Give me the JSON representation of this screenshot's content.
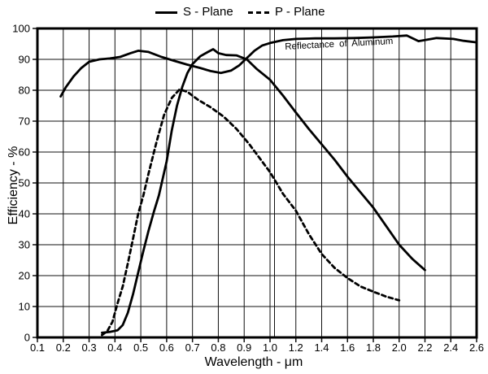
{
  "chart_data": {
    "type": "line",
    "title": "",
    "xlabel": "Wavelength - μm",
    "ylabel": "Efficiency - %",
    "ylim": [
      0,
      100
    ],
    "grid": true,
    "legend_position": "top",
    "x_scale_note": "piecewise linear: 0.1-1.0 μm at 0.1 per division, 1.0-2.6 μm at 0.2 per division",
    "scale_break_line": true,
    "x_ticks": [
      "0.1",
      "0.2",
      "0.3",
      "0.4",
      "0.5",
      "0.6",
      "0.7",
      "0.8",
      "0.9",
      "1.0",
      "1.2",
      "1.4",
      "1.6",
      "1.8",
      "2.0",
      "2.2",
      "2.4",
      "2.6"
    ],
    "y_ticks": [
      "0",
      "10",
      "20",
      "30",
      "40",
      "50",
      "60",
      "70",
      "80",
      "90",
      "100"
    ],
    "series": [
      {
        "id": "s-plane",
        "name": "S - Plane",
        "style": "solid",
        "color": "#000000",
        "points": [
          [
            0.35,
            1.5
          ],
          [
            0.38,
            1.8
          ],
          [
            0.41,
            2.3
          ],
          [
            0.43,
            4
          ],
          [
            0.45,
            8
          ],
          [
            0.47,
            14
          ],
          [
            0.49,
            21
          ],
          [
            0.51,
            28
          ],
          [
            0.53,
            34.5
          ],
          [
            0.55,
            40.5
          ],
          [
            0.57,
            46
          ],
          [
            0.6,
            57
          ],
          [
            0.62,
            67
          ],
          [
            0.64,
            75
          ],
          [
            0.66,
            81
          ],
          [
            0.68,
            85.5
          ],
          [
            0.7,
            88.5
          ],
          [
            0.73,
            91
          ],
          [
            0.76,
            92.4
          ],
          [
            0.78,
            93.3
          ],
          [
            0.8,
            92
          ],
          [
            0.83,
            91.4
          ],
          [
            0.87,
            91.3
          ],
          [
            0.91,
            90
          ],
          [
            0.95,
            86.8
          ],
          [
            1.0,
            83.4
          ],
          [
            1.1,
            78.3
          ],
          [
            1.2,
            72.8
          ],
          [
            1.3,
            67.5
          ],
          [
            1.4,
            62.5
          ],
          [
            1.5,
            57.5
          ],
          [
            1.6,
            52
          ],
          [
            1.7,
            47
          ],
          [
            1.8,
            42
          ],
          [
            1.9,
            36
          ],
          [
            2.0,
            30
          ],
          [
            2.1,
            25.5
          ],
          [
            2.2,
            21.8
          ]
        ]
      },
      {
        "id": "p-plane",
        "name": "P - Plane",
        "style": "dashed",
        "color": "#000000",
        "points": [
          [
            0.35,
            0.8
          ],
          [
            0.37,
            2
          ],
          [
            0.39,
            5
          ],
          [
            0.41,
            11
          ],
          [
            0.43,
            16.5
          ],
          [
            0.45,
            24
          ],
          [
            0.47,
            32
          ],
          [
            0.49,
            40
          ],
          [
            0.51,
            46
          ],
          [
            0.53,
            53
          ],
          [
            0.56,
            63
          ],
          [
            0.59,
            72
          ],
          [
            0.62,
            77.5
          ],
          [
            0.65,
            80.3
          ],
          [
            0.68,
            79.5
          ],
          [
            0.72,
            77
          ],
          [
            0.77,
            74.5
          ],
          [
            0.82,
            71.5
          ],
          [
            0.87,
            67.5
          ],
          [
            0.92,
            62.5
          ],
          [
            0.96,
            58
          ],
          [
            1.0,
            53.5
          ],
          [
            1.1,
            46.5
          ],
          [
            1.2,
            41
          ],
          [
            1.3,
            33.5
          ],
          [
            1.4,
            27
          ],
          [
            1.5,
            22.5
          ],
          [
            1.6,
            19.2
          ],
          [
            1.7,
            16.5
          ],
          [
            1.8,
            14.8
          ],
          [
            1.9,
            13.2
          ],
          [
            2.0,
            12
          ]
        ]
      },
      {
        "id": "aluminum-reflectance",
        "name": "Reflectance of Aluminum",
        "style": "solid",
        "color": "#000000",
        "points": [
          [
            0.19,
            78
          ],
          [
            0.21,
            81
          ],
          [
            0.24,
            84.5
          ],
          [
            0.27,
            87.2
          ],
          [
            0.3,
            89.2
          ],
          [
            0.34,
            90
          ],
          [
            0.38,
            90.3
          ],
          [
            0.42,
            90.8
          ],
          [
            0.46,
            92
          ],
          [
            0.49,
            92.8
          ],
          [
            0.53,
            92.4
          ],
          [
            0.58,
            90.8
          ],
          [
            0.63,
            89.5
          ],
          [
            0.68,
            88.3
          ],
          [
            0.73,
            87.2
          ],
          [
            0.77,
            86.2
          ],
          [
            0.81,
            85.6
          ],
          [
            0.85,
            86.4
          ],
          [
            0.88,
            88
          ],
          [
            0.91,
            90.4
          ],
          [
            0.94,
            92.8
          ],
          [
            0.97,
            94.5
          ],
          [
            1.0,
            95.3
          ],
          [
            1.1,
            96.2
          ],
          [
            1.2,
            96.6
          ],
          [
            1.35,
            96.8
          ],
          [
            1.5,
            96.8
          ],
          [
            1.65,
            96.9
          ],
          [
            1.8,
            97.1
          ],
          [
            1.95,
            97.4
          ],
          [
            2.06,
            97.7
          ],
          [
            2.15,
            95.9
          ],
          [
            2.29,
            96.9
          ],
          [
            2.42,
            96.6
          ],
          [
            2.5,
            96.0
          ],
          [
            2.6,
            95.5
          ]
        ]
      }
    ]
  }
}
